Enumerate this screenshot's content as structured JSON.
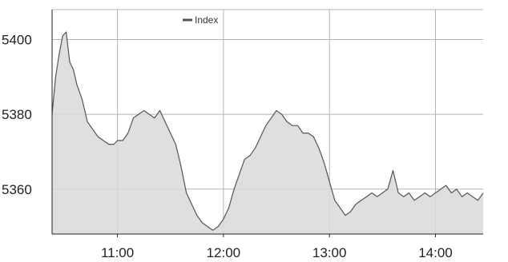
{
  "chart_data": {
    "type": "area",
    "title": "",
    "xlabel": "",
    "ylabel": "",
    "legend": {
      "position": "top-left",
      "entries": [
        "Index"
      ]
    },
    "grid": true,
    "xlim": [
      "10:23",
      "14:27"
    ],
    "ylim": [
      5348,
      5408
    ],
    "x_ticks": [
      "11:00",
      "12:00",
      "13:00",
      "14:00"
    ],
    "y_ticks": [
      5360,
      5380,
      5400
    ],
    "colors": {
      "line": "#555555",
      "fill": "#d9d9d9",
      "grid": "#b5b5b5",
      "axis": "#222222"
    },
    "series": [
      {
        "name": "Index",
        "x": [
          "10:23",
          "10:25",
          "10:27",
          "10:29",
          "10:31",
          "10:33",
          "10:35",
          "10:37",
          "10:40",
          "10:43",
          "10:46",
          "10:49",
          "10:52",
          "10:55",
          "10:58",
          "11:00",
          "11:03",
          "11:06",
          "11:09",
          "11:12",
          "11:15",
          "11:18",
          "11:21",
          "11:24",
          "11:27",
          "11:30",
          "11:33",
          "11:36",
          "11:39",
          "11:42",
          "11:45",
          "11:48",
          "11:51",
          "11:54",
          "11:57",
          "12:00",
          "12:03",
          "12:06",
          "12:09",
          "12:12",
          "12:15",
          "12:18",
          "12:21",
          "12:24",
          "12:27",
          "12:30",
          "12:33",
          "12:36",
          "12:39",
          "12:42",
          "12:45",
          "12:48",
          "12:51",
          "12:54",
          "12:57",
          "13:00",
          "13:03",
          "13:06",
          "13:09",
          "13:12",
          "13:15",
          "13:18",
          "13:21",
          "13:24",
          "13:27",
          "13:30",
          "13:33",
          "13:36",
          "13:39",
          "13:42",
          "13:45",
          "13:48",
          "13:51",
          "13:54",
          "13:57",
          "14:00",
          "14:03",
          "14:06",
          "14:09",
          "14:12",
          "14:15",
          "14:18",
          "14:21",
          "14:24",
          "14:27"
        ],
        "values": [
          5380,
          5390,
          5396,
          5401,
          5402,
          5394,
          5392,
          5388,
          5384,
          5378,
          5376,
          5374,
          5373,
          5372,
          5372,
          5373,
          5373,
          5375,
          5379,
          5380,
          5381,
          5380,
          5379,
          5381,
          5378,
          5375,
          5372,
          5366,
          5359,
          5356,
          5353,
          5351,
          5350,
          5349,
          5350,
          5352,
          5355,
          5360,
          5364,
          5368,
          5369,
          5371,
          5374,
          5377,
          5379,
          5381,
          5380,
          5378,
          5377,
          5377,
          5375,
          5375,
          5374,
          5371,
          5367,
          5362,
          5357,
          5355,
          5353,
          5354,
          5356,
          5357,
          5358,
          5359,
          5358,
          5359,
          5360,
          5365,
          5359,
          5358,
          5359,
          5357,
          5358,
          5359,
          5358,
          5359,
          5360,
          5361,
          5359,
          5360,
          5358,
          5359,
          5358,
          5357,
          5359
        ]
      }
    ]
  }
}
